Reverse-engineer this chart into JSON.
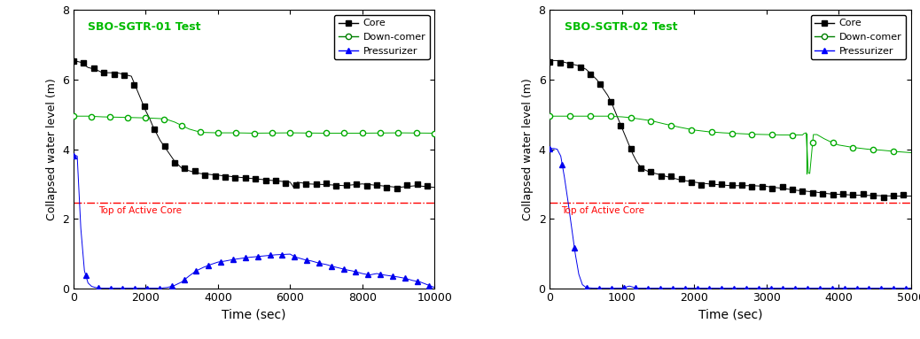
{
  "plot1": {
    "title": "SBO-SGTR-01 Test",
    "title_color": "#00bb00",
    "xlim": [
      0,
      10000
    ],
    "ylim": [
      0,
      8
    ],
    "yticks": [
      0,
      2,
      4,
      6,
      8
    ],
    "xticks": [
      0,
      2000,
      4000,
      6000,
      8000,
      10000
    ],
    "xlabel": "Time (sec)",
    "ylabel": "Collapsed water level (m)",
    "tac_level": 2.45,
    "tac_label": "Top of Active Core",
    "core_color": "#000000",
    "downcomer_color": "#00aa00",
    "pressurizer_color": "#0000ee"
  },
  "plot2": {
    "title": "SBO-SGTR-02 Test",
    "title_color": "#00bb00",
    "xlim": [
      0,
      5000
    ],
    "ylim": [
      0,
      8
    ],
    "yticks": [
      0,
      2,
      4,
      6,
      8
    ],
    "xticks": [
      0,
      1000,
      2000,
      3000,
      4000,
      5000
    ],
    "xlabel": "Time (sec)",
    "ylabel": "Collapsed water level (m)",
    "tac_level": 2.45,
    "tac_label": "Top of Active Core",
    "core_color": "#000000",
    "downcomer_color": "#00aa00",
    "pressurizer_color": "#0000ee"
  },
  "legend_labels": [
    "Core",
    "Down-comer",
    "Pressurizer"
  ],
  "figsize": [
    10.38,
    3.83
  ],
  "dpi": 100
}
